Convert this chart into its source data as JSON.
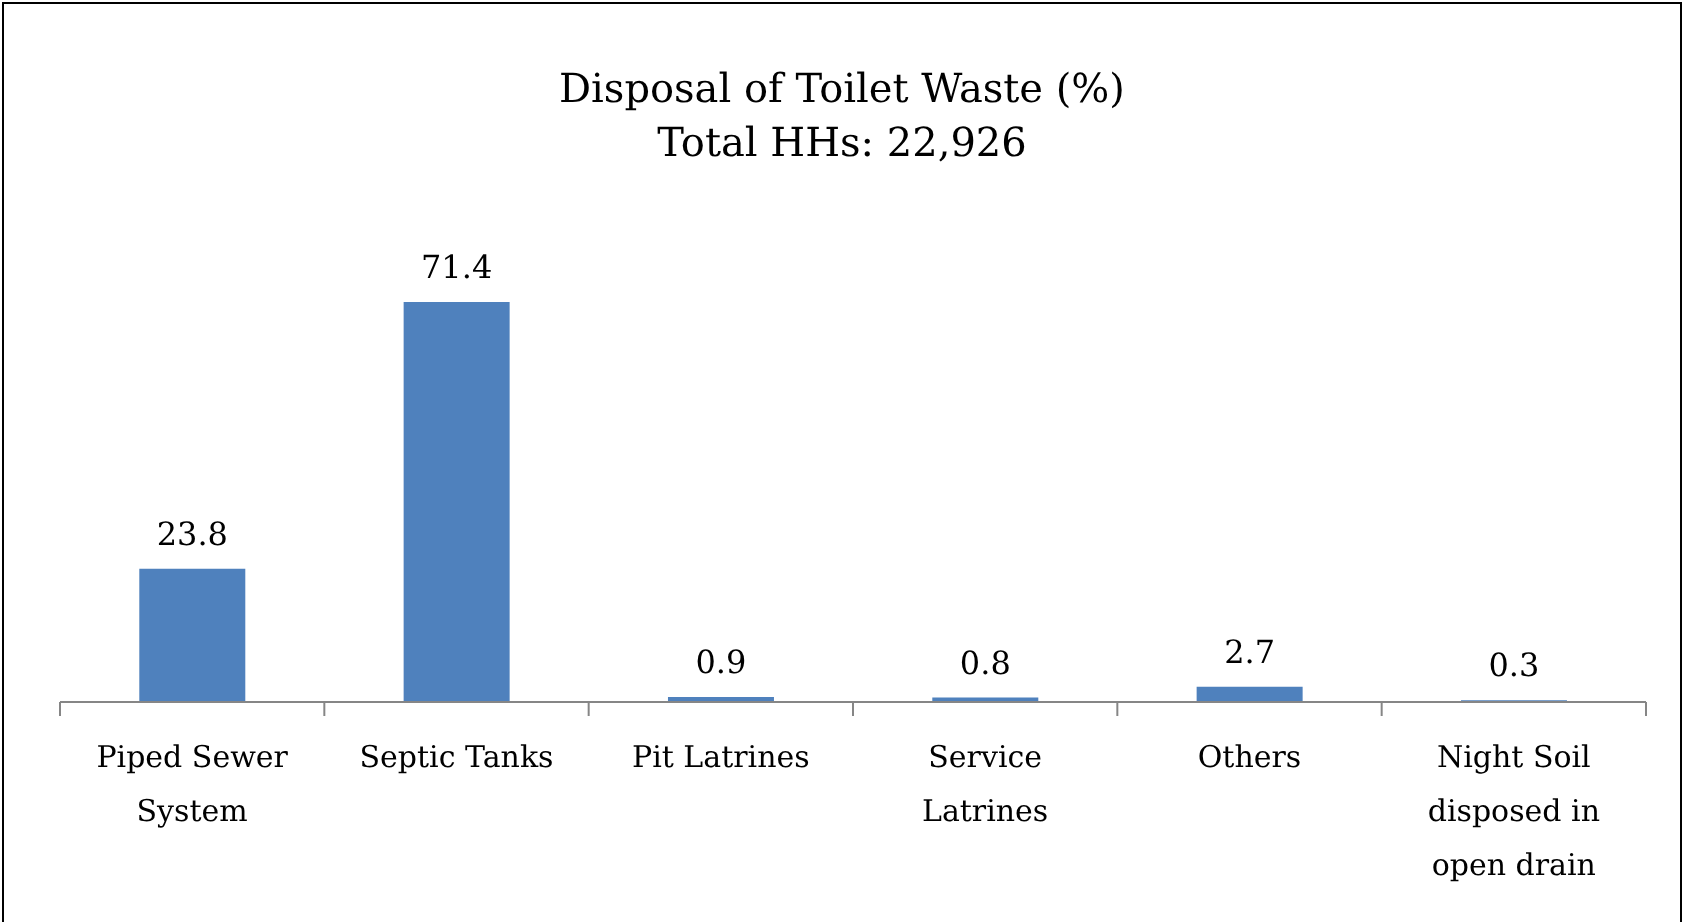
{
  "chart_data": {
    "type": "bar",
    "title": "Disposal of Toilet Waste (%)",
    "subtitle": "Total HHs: 22,926",
    "categories": [
      "Piped Sewer System",
      "Septic Tanks",
      "Pit Latrines",
      "Service Latrines",
      "Others",
      "Night Soil disposed in open drain"
    ],
    "values": [
      23.8,
      71.4,
      0.9,
      0.8,
      2.7,
      0.3
    ],
    "color": "#4f81bd",
    "data_labels": true
  }
}
